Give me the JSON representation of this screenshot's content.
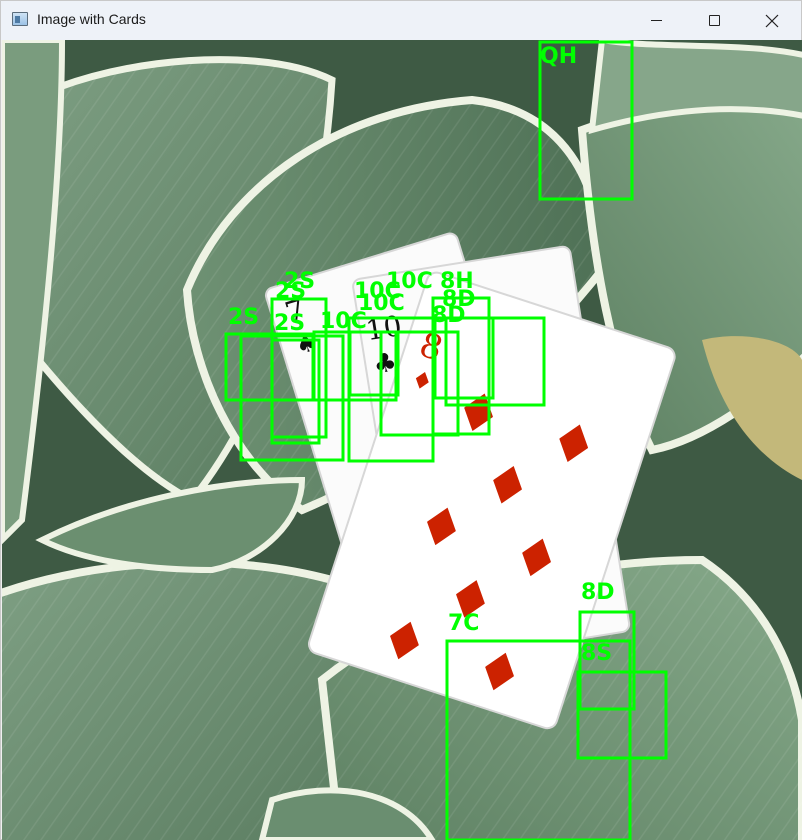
{
  "window": {
    "title": "Image with Cards",
    "controls": {
      "minimize": "minimize",
      "maximize": "maximize",
      "close": "close"
    }
  },
  "image": {
    "description_icon": "image-canvas",
    "box_color": "#00ff00",
    "cards_in_picture": [
      {
        "rank": "7",
        "suit": "spades"
      },
      {
        "rank": "10",
        "suit": "clubs"
      },
      {
        "rank": "8",
        "suit": "diamonds"
      }
    ],
    "detections": [
      {
        "label": "QH"
      },
      {
        "label": "2S"
      },
      {
        "label": "2S"
      },
      {
        "label": "2S"
      },
      {
        "label": "2S"
      },
      {
        "label": "10C"
      },
      {
        "label": "10C"
      },
      {
        "label": "10C"
      },
      {
        "label": "10C"
      },
      {
        "label": "8H"
      },
      {
        "label": "8D"
      },
      {
        "label": "8D"
      },
      {
        "label": "8D"
      },
      {
        "label": "7C"
      },
      {
        "label": "8S"
      }
    ]
  }
}
